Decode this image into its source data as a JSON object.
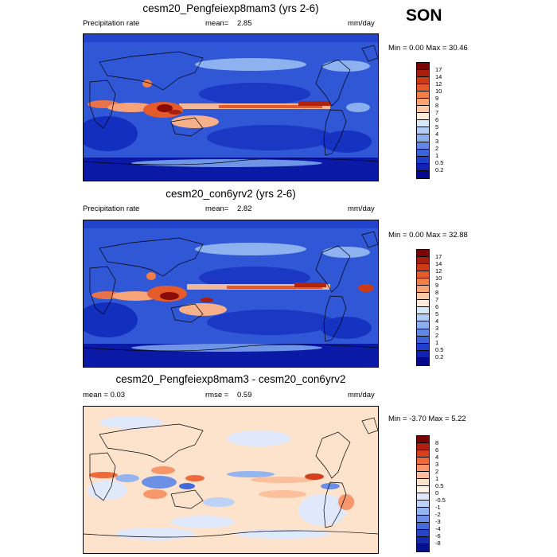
{
  "season": "SON",
  "panels": [
    {
      "title": "cesm20_Pengfeiexp8mam3 (yrs 2-6)",
      "left_label": "Precipitation rate",
      "mean_label": "mean=",
      "mean_value": "2.85",
      "units": "mm/day",
      "minmax": "Min =   0.00 Max =  30.46",
      "colorbar_labels": [
        "17",
        "14",
        "12",
        "10",
        "9",
        "8",
        "7",
        "6",
        "5",
        "4",
        "3",
        "2",
        "1",
        "0.5",
        "0.2"
      ]
    },
    {
      "title": "cesm20_con6yrv2 (yrs 2-6)",
      "left_label": "Precipitation rate",
      "mean_label": "mean=",
      "mean_value": "2.82",
      "units": "mm/day",
      "minmax": "Min =   0.00 Max =  32.88",
      "colorbar_labels": [
        "17",
        "14",
        "12",
        "10",
        "9",
        "8",
        "7",
        "6",
        "5",
        "4",
        "3",
        "2",
        "1",
        "0.5",
        "0.2"
      ]
    },
    {
      "title": "cesm20_Pengfeiexp8mam3 - cesm20_con6yrv2",
      "left_label": "mean =    0.03",
      "mean_label": "rmse =",
      "mean_value": "0.59",
      "units": "mm/day",
      "minmax": "Min =  -3.70 Max =   5.22",
      "colorbar_labels": [
        "8",
        "6",
        "4",
        "3",
        "2",
        "1",
        "0.5",
        "0",
        "-0.5",
        "-1",
        "-2",
        "-3",
        "-4",
        "-6",
        "-8"
      ]
    }
  ],
  "colors": {
    "precip_scale": [
      "#7a0403",
      "#a81d0b",
      "#cc3a16",
      "#e45a2a",
      "#f27e46",
      "#f7a372",
      "#fbc8a5",
      "#fde9d8",
      "#d8e8fb",
      "#b2cdf5",
      "#8aaeee",
      "#6089e5",
      "#3a62d9",
      "#1f3fcb",
      "#1022b4",
      "#050a8c"
    ],
    "diff_scale": [
      "#7a0403",
      "#b01e0d",
      "#d63f1d",
      "#ee6a3b",
      "#f6966a",
      "#fbbf9b",
      "#fde2cc",
      "#fff2e6",
      "#dfe9fb",
      "#bcd2f6",
      "#93b4ef",
      "#6b90e5",
      "#4469d8",
      "#2645c6",
      "#132ab0",
      "#06108a"
    ]
  }
}
